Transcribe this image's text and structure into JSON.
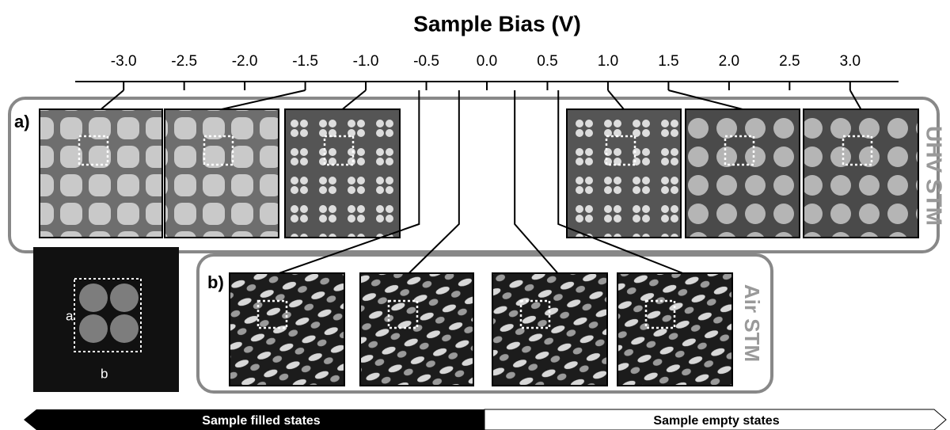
{
  "title": "Sample Bias (V)",
  "axis": {
    "xlim": [
      -3.4,
      3.4
    ],
    "xticks": [
      {
        "value": -3,
        "label": "-3.0"
      },
      -2.5,
      {
        "value": -2,
        "label": "-2.0"
      },
      -1.5,
      {
        "value": -1,
        "label": "-1.0"
      },
      -0.5,
      {
        "value": 0,
        "label": "0.0"
      },
      0.5,
      {
        "value": 1,
        "label": "1.0"
      },
      1.5,
      {
        "value": 2,
        "label": "2.0"
      },
      2.5,
      {
        "value": 3,
        "label": "3.0"
      }
    ]
  },
  "uhv": {
    "label": "a)",
    "side_label": "UHV STM",
    "biases": [
      -3,
      -1.5,
      -1,
      1,
      1.5,
      3
    ]
  },
  "air": {
    "label": "b)",
    "side_label": "Air STM",
    "biases": [
      -0.56,
      -0.23,
      0.23,
      0.59
    ]
  },
  "molecule": {
    "labels": [
      "a",
      "b"
    ]
  },
  "states": {
    "filled": "Sample filled states",
    "empty": "Sample empty states"
  }
}
